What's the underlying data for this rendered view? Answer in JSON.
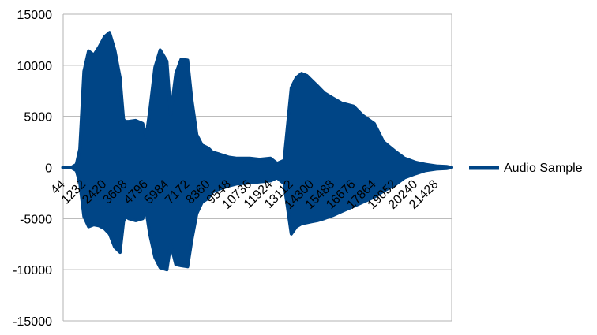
{
  "chart_data": {
    "type": "line",
    "title": "",
    "xlabel": "",
    "ylabel": "",
    "ylim": [
      -15000,
      15000
    ],
    "yticks": [
      15000,
      10000,
      5000,
      0,
      -5000,
      -10000,
      -15000
    ],
    "ytick_labels": [
      "15000",
      "10000",
      "5000",
      "0",
      "-5000",
      "-10000",
      "-15000"
    ],
    "x_range": [
      44,
      22300
    ],
    "xtick_labels": [
      "44",
      "1232",
      "2420",
      "3608",
      "4796",
      "5984",
      "7172",
      "8360",
      "9548",
      "10736",
      "11924",
      "13112",
      "14300",
      "15488",
      "16676",
      "17864",
      "19052",
      "20240",
      "21428"
    ],
    "grid": true,
    "legend_position": "right",
    "series": [
      {
        "name": "Audio Sample",
        "color": "#004586",
        "envelope": {
          "x": [
            44,
            500,
            800,
            1000,
            1232,
            1500,
            1800,
            2100,
            2420,
            2700,
            3000,
            3300,
            3500,
            3608,
            3800,
            4200,
            4600,
            4796,
            5000,
            5300,
            5600,
            5984,
            6200,
            6500,
            6800,
            7172,
            7400,
            7700,
            8000,
            8360,
            8600,
            9000,
            9548,
            10000,
            10736,
            11300,
            11924,
            12300,
            12700,
            13112,
            13400,
            13700,
            14000,
            14300,
            14600,
            15000,
            15488,
            16000,
            16676,
            17200,
            17864,
            18400,
            19052,
            19600,
            20240,
            20800,
            21428,
            22000,
            22300
          ],
          "upper": [
            0,
            0,
            300,
            1800,
            9400,
            11400,
            11000,
            11800,
            12800,
            13200,
            11500,
            8800,
            4700,
            4500,
            4500,
            4600,
            4300,
            3000,
            5500,
            9800,
            11500,
            10400,
            5200,
            9200,
            10600,
            10500,
            6800,
            3200,
            2200,
            1900,
            1500,
            1300,
            1000,
            900,
            900,
            800,
            900,
            400,
            700,
            7800,
            8800,
            9200,
            9000,
            8500,
            8000,
            7300,
            6800,
            6300,
            6000,
            5100,
            4300,
            2500,
            1600,
            900,
            500,
            300,
            150,
            100,
            0
          ],
          "lower": [
            0,
            0,
            -300,
            -1500,
            -4800,
            -5800,
            -5600,
            -5700,
            -6000,
            -6500,
            -7800,
            -8300,
            -5300,
            -4800,
            -5000,
            -5200,
            -5000,
            -4200,
            -6500,
            -8800,
            -9800,
            -10000,
            -7500,
            -9500,
            -9600,
            -9700,
            -7200,
            -4500,
            -3400,
            -3000,
            -2400,
            -2100,
            -1800,
            -1600,
            -1500,
            -1400,
            -1300,
            -1000,
            -1600,
            -6500,
            -5800,
            -5500,
            -5400,
            -5300,
            -5200,
            -5000,
            -4700,
            -4300,
            -3800,
            -3400,
            -2900,
            -2300,
            -1700,
            -1000,
            -600,
            -300,
            -150,
            -100,
            0
          ]
        }
      }
    ]
  }
}
